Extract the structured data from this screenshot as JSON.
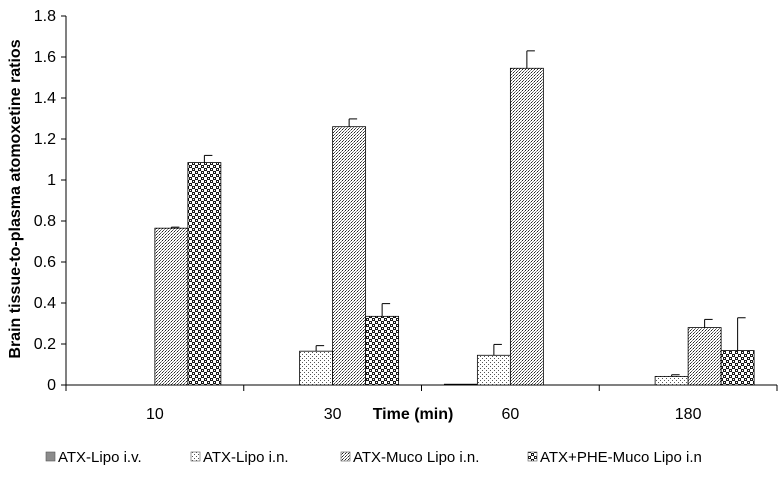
{
  "chart_data": {
    "type": "bar",
    "title": "",
    "xlabel": "Time (min)",
    "ylabel": "Brain tissue-to-plasma atomoxetine ratios",
    "categories": [
      "10",
      "30",
      "60",
      "180"
    ],
    "ylim": [
      0,
      1.8
    ],
    "yticks": [
      "0",
      "0.2",
      "0.4",
      "0.6",
      "0.8",
      "1",
      "1.2",
      "1.4",
      "1.6",
      "1.8"
    ],
    "grid": false,
    "legend_position": "bottom",
    "series": [
      {
        "name": "ATX-Lipo i.v.",
        "pattern": "solid-gray",
        "values": [
          0,
          0,
          0.003,
          0
        ],
        "errors": [
          0,
          0,
          0,
          0
        ]
      },
      {
        "name": "ATX-Lipo i.n.",
        "pattern": "fine-dots",
        "values": [
          0,
          0.165,
          0.145,
          0.042
        ],
        "errors": [
          0,
          0.027,
          0.053,
          0.008
        ]
      },
      {
        "name": "ATX-Muco Lipo i.n.",
        "pattern": "dense-dots",
        "values": [
          0.765,
          1.26,
          1.545,
          0.28
        ],
        "errors": [
          0.005,
          0.038,
          0.085,
          0.04
        ]
      },
      {
        "name": "ATX+PHE-Muco Lipo i.n",
        "pattern": "checker",
        "values": [
          1.085,
          0.335,
          0,
          0.168
        ],
        "errors": [
          0.035,
          0.062,
          0,
          0.16
        ]
      }
    ]
  }
}
